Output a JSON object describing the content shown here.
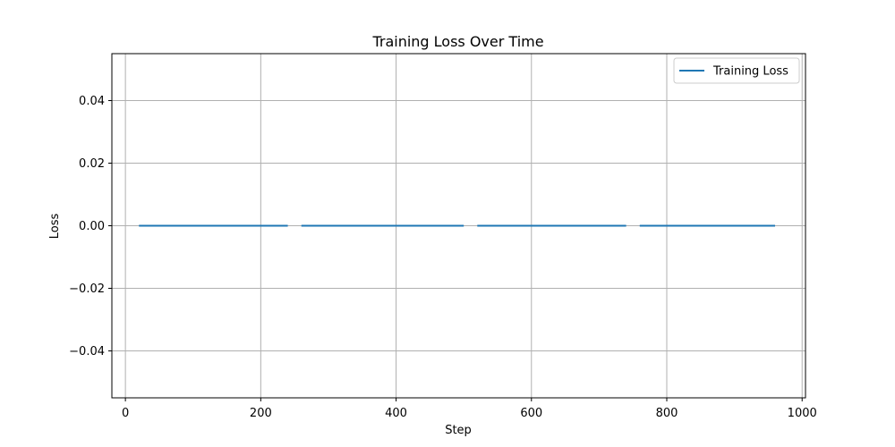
{
  "chart_data": {
    "type": "line",
    "title": "Training Loss Over Time",
    "xlabel": "Step",
    "ylabel": "Loss",
    "xlim": [
      -20,
      1005
    ],
    "ylim": [
      -0.055,
      0.055
    ],
    "xticks": [
      0,
      200,
      400,
      600,
      800,
      1000
    ],
    "xtick_labels": [
      "0",
      "200",
      "400",
      "600",
      "800",
      "1000"
    ],
    "yticks": [
      -0.04,
      -0.02,
      0.0,
      0.02,
      0.04
    ],
    "ytick_labels": [
      "−0.04",
      "−0.02",
      "0.00",
      "0.02",
      "0.04"
    ],
    "grid": true,
    "legend": {
      "placement": "top-right",
      "entries": [
        "Training Loss"
      ]
    },
    "series": [
      {
        "name": "Training Loss",
        "color": "#1f77b4",
        "segments": [
          {
            "x": [
              20,
              240
            ],
            "y": [
              0.0,
              0.0
            ]
          },
          {
            "x": [
              260,
              500
            ],
            "y": [
              0.0,
              0.0
            ]
          },
          {
            "x": [
              520,
              740
            ],
            "y": [
              0.0,
              0.0
            ]
          },
          {
            "x": [
              760,
              960
            ],
            "y": [
              0.0,
              0.0
            ]
          }
        ]
      }
    ]
  }
}
